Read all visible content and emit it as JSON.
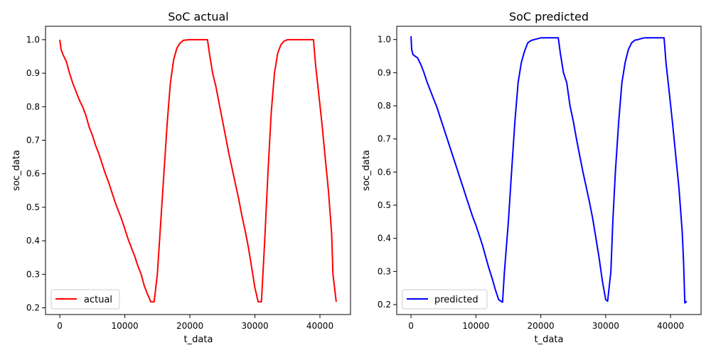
{
  "chart_data": [
    {
      "type": "line",
      "title": "SoC actual",
      "xlabel": "t_data",
      "ylabel": "soc_data",
      "xlim": [
        -2200,
        44700
      ],
      "ylim": [
        0.18,
        1.04
      ],
      "x_ticks": [
        0,
        10000,
        20000,
        30000,
        40000
      ],
      "x_tick_labels": [
        "0",
        "10000",
        "20000",
        "30000",
        "40000"
      ],
      "y_ticks": [
        0.2,
        0.3,
        0.4,
        0.5,
        0.6,
        0.7,
        0.8,
        0.9,
        1.0
      ],
      "y_tick_labels": [
        "0.2",
        "0.3",
        "0.4",
        "0.5",
        "0.6",
        "0.7",
        "0.8",
        "0.9",
        "1.0"
      ],
      "grid": false,
      "legend": "lower-left",
      "series": [
        {
          "name": "actual",
          "color": "#ff0000",
          "x": [
            0,
            200,
            500,
            1000,
            1500,
            2000,
            2500,
            3000,
            3500,
            4000,
            4500,
            5000,
            5500,
            6000,
            6500,
            7000,
            7500,
            8000,
            8500,
            9000,
            9500,
            10000,
            10500,
            11000,
            11500,
            12000,
            12500,
            13000,
            13500,
            14000,
            14500,
            15000,
            15500,
            16000,
            16500,
            17000,
            17500,
            18000,
            18500,
            19000,
            20000,
            21000,
            22000,
            22700,
            23000,
            23500,
            24000,
            24500,
            25000,
            25500,
            26000,
            26500,
            27000,
            27500,
            28000,
            28500,
            29000,
            29500,
            30000,
            30500,
            31000,
            31500,
            32000,
            32500,
            33000,
            33500,
            34000,
            34500,
            35000,
            35500,
            36000,
            37000,
            38000,
            39000,
            39300,
            39800,
            40300,
            40800,
            41300,
            41800,
            42000,
            42500
          ],
          "y": [
            1.0,
            0.97,
            0.955,
            0.935,
            0.9,
            0.87,
            0.845,
            0.82,
            0.8,
            0.775,
            0.74,
            0.715,
            0.685,
            0.66,
            0.63,
            0.6,
            0.575,
            0.545,
            0.515,
            0.49,
            0.465,
            0.435,
            0.405,
            0.38,
            0.355,
            0.325,
            0.3,
            0.265,
            0.24,
            0.218,
            0.218,
            0.3,
            0.45,
            0.6,
            0.75,
            0.87,
            0.94,
            0.975,
            0.99,
            0.998,
            1.0,
            1.0,
            1.0,
            1.0,
            0.96,
            0.9,
            0.86,
            0.81,
            0.76,
            0.71,
            0.66,
            0.615,
            0.57,
            0.525,
            0.475,
            0.43,
            0.38,
            0.32,
            0.26,
            0.218,
            0.218,
            0.4,
            0.6,
            0.78,
            0.9,
            0.96,
            0.985,
            0.996,
            1.0,
            1.0,
            1.0,
            1.0,
            1.0,
            1.0,
            0.93,
            0.84,
            0.75,
            0.65,
            0.55,
            0.42,
            0.3,
            0.218
          ]
        }
      ]
    },
    {
      "type": "line",
      "title": "SoC predicted",
      "xlabel": "t_data",
      "ylabel": "soc_data",
      "xlim": [
        -2200,
        44700
      ],
      "ylim": [
        0.17,
        1.04
      ],
      "x_ticks": [
        0,
        10000,
        20000,
        30000,
        40000
      ],
      "x_tick_labels": [
        "0",
        "10000",
        "20000",
        "30000",
        "40000"
      ],
      "y_ticks": [
        0.2,
        0.3,
        0.4,
        0.5,
        0.6,
        0.7,
        0.8,
        0.9,
        1.0
      ],
      "y_tick_labels": [
        "0.2",
        "0.3",
        "0.4",
        "0.5",
        "0.6",
        "0.7",
        "0.8",
        "0.9",
        "1.0"
      ],
      "grid": false,
      "legend": "lower-left",
      "series": [
        {
          "name": "predicted",
          "color": "#0000ff",
          "x": [
            0,
            100,
            300,
            600,
            1000,
            1500,
            2000,
            2500,
            3000,
            3500,
            4000,
            4500,
            5000,
            5500,
            6000,
            6500,
            7000,
            7500,
            8000,
            8500,
            9000,
            9500,
            10000,
            10500,
            11000,
            11500,
            12000,
            12500,
            13000,
            13500,
            14100,
            14400,
            15000,
            15500,
            16000,
            16500,
            17000,
            17500,
            18000,
            18500,
            19000,
            20000,
            21000,
            22000,
            22700,
            23000,
            23500,
            24000,
            24500,
            25000,
            25500,
            26000,
            26500,
            27000,
            27500,
            28000,
            28500,
            29000,
            29500,
            30000,
            30300,
            30800,
            31100,
            31500,
            32000,
            32500,
            33000,
            33500,
            34000,
            34500,
            35000,
            35500,
            36000,
            37000,
            38000,
            39000,
            39300,
            39800,
            40300,
            40800,
            41300,
            41800,
            42000,
            42200,
            42500
          ],
          "y": [
            1.01,
            0.97,
            0.955,
            0.95,
            0.945,
            0.925,
            0.9,
            0.87,
            0.845,
            0.82,
            0.795,
            0.765,
            0.735,
            0.705,
            0.675,
            0.645,
            0.615,
            0.585,
            0.555,
            0.525,
            0.495,
            0.465,
            0.44,
            0.41,
            0.38,
            0.345,
            0.31,
            0.28,
            0.245,
            0.215,
            0.207,
            0.3,
            0.45,
            0.6,
            0.75,
            0.87,
            0.93,
            0.965,
            0.99,
            0.997,
            1.0,
            1.005,
            1.005,
            1.005,
            1.005,
            0.96,
            0.9,
            0.87,
            0.8,
            0.755,
            0.7,
            0.65,
            0.6,
            0.555,
            0.51,
            0.46,
            0.4,
            0.34,
            0.27,
            0.215,
            0.21,
            0.3,
            0.45,
            0.6,
            0.75,
            0.87,
            0.93,
            0.97,
            0.99,
            0.998,
            1.0,
            1.003,
            1.005,
            1.005,
            1.005,
            1.005,
            0.93,
            0.84,
            0.75,
            0.65,
            0.55,
            0.42,
            0.33,
            0.205,
            0.21
          ]
        }
      ]
    }
  ]
}
